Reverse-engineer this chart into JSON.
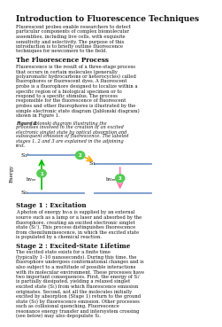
{
  "title": "Introduction to Fluorescence Techniques",
  "intro_text": "Fluorescent probes enable researchers to detect particular components of complex biomolecular assemblies, including live cells, with exquisite sensitivity and selectivity. The purpose of this introduction is to briefly outline fluorescence techniques for newcomers to the field.",
  "section1_title": "The Fluorescence Process",
  "section1_text": "Fluorescence is the result of a three-stage process that occurs in certain molecules (generally polyaromatic hydrocarbons or heterocycles) called fluorophores or fluorescent dyes. A fluorescent probe is a fluorophore designed to localize within a specific region of a biological specimen or to respond to a specific stimulus. The process responsible for the fluorescence of fluorescent probes and other fluorophores is illustrated by the simple electronic state diagram (Jablonski diagram) shown in Figure 1.",
  "figure_caption_bold": "Figure 1",
  "figure_caption_rest": " Jablonski diagram illustrating the processes involved in the creation of an excited electronic singlet state by optical absorption and subsequent emission of fluorescence. The labeled stages 1, 2 and 3 are explained in the adjoining text.",
  "stage1_title": "Stage 1 : Excitation",
  "stage1_text": "A photon of energy hvₑx is supplied by an external source such as a lamp or a laser and absorbed by the fluorophore, creating an excited electronic singlet state (S₁'). This process distinguishes fluorescence from chemiluminescence, in which the excited state is populated by a chemical reaction.",
  "stage2_title": "Stage 2 : Excited-State Lifetime",
  "stage2_text": "The excited state exists for a finite time (typically 1–10 nanoseconds). During this time, the fluorophore undergoes conformational changes and is also subject to a multitude of possible interactions with its molecular environment. These processes have two important consequences. First, the energy of S₁' is partially dissipated, yielding a relaxed singlet excited state (S₁) from which fluorescence emission originates. Second, not all the molecules initially excited by absorption (Stage 1) return to the ground state (S₀) by fluorescence emission. Other processes such as collisional quenching, Fluorescence resonance energy transfer and intersystem crossing (see below) may also depopulate S₁.",
  "background_color": "#ffffff",
  "text_color": "#111111"
}
